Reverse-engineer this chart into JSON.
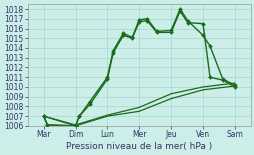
{
  "xlabel": "Pression niveau de la mer( hPa )",
  "ylim": [
    1006,
    1018.5
  ],
  "yticks": [
    1006,
    1007,
    1008,
    1009,
    1010,
    1011,
    1012,
    1013,
    1014,
    1015,
    1016,
    1017,
    1018
  ],
  "xtick_labels": [
    "Mar",
    "Dim",
    "Lun",
    "Mer",
    "Jeu",
    "Ven",
    "Sam"
  ],
  "background_color": "#cceee8",
  "grid_color": "#aad4ce",
  "line_color": "#1a6b1a",
  "line1_x": [
    0.0,
    0.12,
    1.0,
    1.12,
    1.45,
    2.0,
    2.18,
    2.5,
    2.78,
    3.0,
    3.25,
    3.55,
    4.0,
    4.28,
    4.52,
    5.0,
    5.22,
    5.62,
    6.0
  ],
  "line1_y": [
    1007.0,
    1006.1,
    1006.0,
    1007.0,
    1008.2,
    1010.8,
    1013.5,
    1015.3,
    1015.0,
    1016.7,
    1016.8,
    1015.6,
    1015.6,
    1017.8,
    1016.6,
    1016.5,
    1011.0,
    1010.7,
    1010.0
  ],
  "line2_x": [
    0.0,
    0.12,
    1.0,
    1.12,
    1.45,
    2.0,
    2.18,
    2.5,
    2.78,
    3.0,
    3.25,
    3.55,
    4.0,
    4.28,
    4.52,
    5.0,
    5.22,
    5.62,
    6.0
  ],
  "line2_y": [
    1007.0,
    1006.1,
    1006.0,
    1007.0,
    1008.5,
    1011.0,
    1013.7,
    1015.5,
    1015.1,
    1016.9,
    1017.0,
    1015.7,
    1015.8,
    1018.0,
    1016.8,
    1015.3,
    1014.2,
    1010.8,
    1010.2
  ],
  "line3_x": [
    0.0,
    1.0,
    2.0,
    3.0,
    4.0,
    5.0,
    6.0
  ],
  "line3_y": [
    1007.0,
    1006.0,
    1007.0,
    1007.5,
    1008.8,
    1009.7,
    1010.1
  ],
  "line4_x": [
    0.0,
    1.0,
    2.0,
    3.0,
    4.0,
    5.0,
    6.0
  ],
  "line4_y": [
    1007.0,
    1006.1,
    1007.1,
    1007.9,
    1009.3,
    1010.0,
    1010.4
  ]
}
